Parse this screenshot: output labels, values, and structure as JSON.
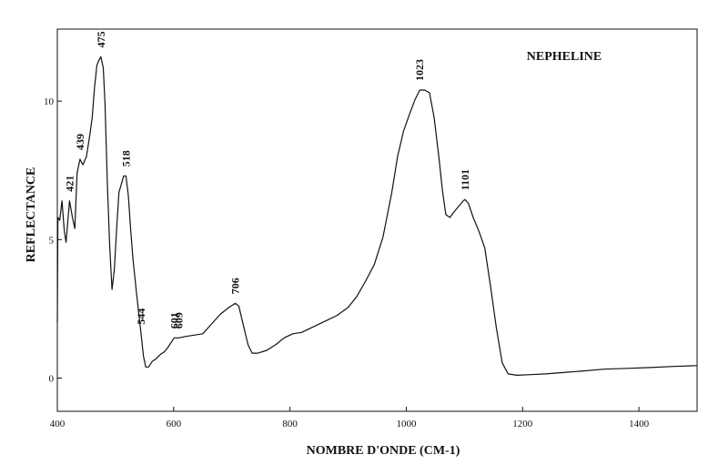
{
  "chart_data": {
    "type": "line",
    "title": "NEPHELINE",
    "xlabel": "NOMBRE D'ONDE (CM-1)",
    "ylabel": "REFLECTANCE",
    "xlim": [
      400,
      1500
    ],
    "ylim": [
      -1.2,
      12.6
    ],
    "x_ticks": [
      "400",
      "600",
      "800",
      "1000",
      "1200",
      "1400"
    ],
    "y_ticks": [
      "0",
      "5",
      "10"
    ],
    "grid": false,
    "legend": "none",
    "series": [
      {
        "color": "#111111",
        "points": [
          [
            400,
            2.0
          ],
          [
            401,
            5.8
          ],
          [
            404,
            5.7
          ],
          [
            408,
            6.4
          ],
          [
            412,
            5.3
          ],
          [
            415,
            4.9
          ],
          [
            421,
            6.4
          ],
          [
            426,
            5.8
          ],
          [
            430,
            5.4
          ],
          [
            434,
            7.4
          ],
          [
            439,
            7.9
          ],
          [
            444,
            7.7
          ],
          [
            450,
            8.0
          ],
          [
            456,
            8.8
          ],
          [
            460,
            9.4
          ],
          [
            464,
            10.5
          ],
          [
            468,
            11.3
          ],
          [
            472,
            11.5
          ],
          [
            475,
            11.6
          ],
          [
            479,
            11.2
          ],
          [
            482,
            9.9
          ],
          [
            486,
            7.0
          ],
          [
            490,
            4.8
          ],
          [
            494,
            3.2
          ],
          [
            498,
            3.9
          ],
          [
            502,
            5.4
          ],
          [
            506,
            6.7
          ],
          [
            510,
            7.0
          ],
          [
            514,
            7.3
          ],
          [
            518,
            7.3
          ],
          [
            522,
            6.6
          ],
          [
            526,
            5.4
          ],
          [
            530,
            4.3
          ],
          [
            536,
            3.1
          ],
          [
            544,
            1.6
          ],
          [
            548,
            0.8
          ],
          [
            552,
            0.4
          ],
          [
            557,
            0.4
          ],
          [
            563,
            0.6
          ],
          [
            570,
            0.7
          ],
          [
            577,
            0.85
          ],
          [
            584,
            0.95
          ],
          [
            590,
            1.1
          ],
          [
            596,
            1.3
          ],
          [
            601,
            1.45
          ],
          [
            609,
            1.45
          ],
          [
            620,
            1.5
          ],
          [
            635,
            1.55
          ],
          [
            650,
            1.6
          ],
          [
            665,
            1.95
          ],
          [
            680,
            2.3
          ],
          [
            695,
            2.55
          ],
          [
            706,
            2.7
          ],
          [
            712,
            2.6
          ],
          [
            720,
            1.9
          ],
          [
            728,
            1.2
          ],
          [
            735,
            0.9
          ],
          [
            745,
            0.9
          ],
          [
            760,
            1.0
          ],
          [
            775,
            1.2
          ],
          [
            790,
            1.45
          ],
          [
            805,
            1.6
          ],
          [
            820,
            1.65
          ],
          [
            840,
            1.85
          ],
          [
            860,
            2.05
          ],
          [
            880,
            2.25
          ],
          [
            900,
            2.55
          ],
          [
            915,
            2.95
          ],
          [
            930,
            3.5
          ],
          [
            945,
            4.1
          ],
          [
            960,
            5.1
          ],
          [
            975,
            6.7
          ],
          [
            985,
            8.0
          ],
          [
            995,
            8.9
          ],
          [
            1005,
            9.5
          ],
          [
            1015,
            10.05
          ],
          [
            1023,
            10.4
          ],
          [
            1032,
            10.4
          ],
          [
            1040,
            10.3
          ],
          [
            1048,
            9.4
          ],
          [
            1056,
            8.0
          ],
          [
            1062,
            6.8
          ],
          [
            1068,
            5.9
          ],
          [
            1075,
            5.8
          ],
          [
            1082,
            6.0
          ],
          [
            1090,
            6.2
          ],
          [
            1098,
            6.4
          ],
          [
            1101,
            6.45
          ],
          [
            1107,
            6.3
          ],
          [
            1115,
            5.8
          ],
          [
            1125,
            5.3
          ],
          [
            1135,
            4.7
          ],
          [
            1145,
            3.3
          ],
          [
            1155,
            1.8
          ],
          [
            1165,
            0.55
          ],
          [
            1175,
            0.15
          ],
          [
            1190,
            0.1
          ],
          [
            1210,
            0.12
          ],
          [
            1240,
            0.15
          ],
          [
            1270,
            0.2
          ],
          [
            1300,
            0.25
          ],
          [
            1340,
            0.32
          ],
          [
            1380,
            0.35
          ],
          [
            1420,
            0.38
          ],
          [
            1460,
            0.42
          ],
          [
            1500,
            0.45
          ]
        ]
      }
    ],
    "peak_labels": [
      {
        "text": "421",
        "x": 421,
        "y": 6.4
      },
      {
        "text": "439",
        "x": 439,
        "y": 7.9
      },
      {
        "text": "475",
        "x": 475,
        "y": 11.6
      },
      {
        "text": "518",
        "x": 518,
        "y": 7.3
      },
      {
        "text": "544",
        "x": 544,
        "y": 1.6
      },
      {
        "text": "601",
        "x": 601,
        "y": 1.45
      },
      {
        "text": "609",
        "x": 609,
        "y": 1.45
      },
      {
        "text": "706",
        "x": 706,
        "y": 2.7
      },
      {
        "text": "1023",
        "x": 1023,
        "y": 10.4
      },
      {
        "text": "1101",
        "x": 1101,
        "y": 6.45
      }
    ]
  }
}
